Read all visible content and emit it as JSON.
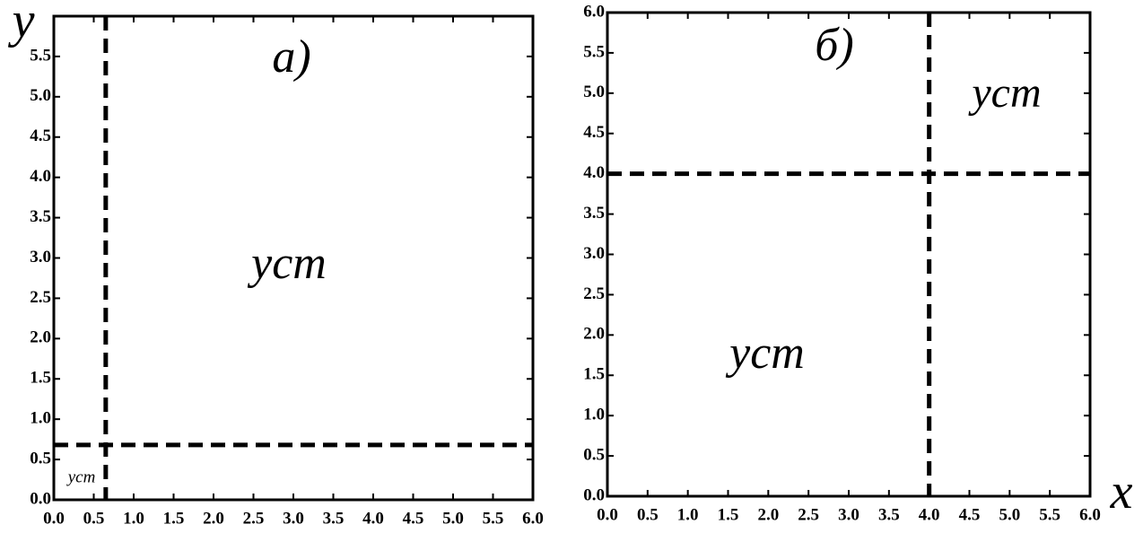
{
  "chart_data": [
    {
      "type": "threshold",
      "label": "а)",
      "y_label": "y",
      "annotations": [
        "уст",
        "уст"
      ],
      "vline": 0.65,
      "hline": 0.68,
      "xlim": [
        0,
        6
      ],
      "ylim": [
        0,
        6
      ],
      "xticks": [
        {
          "value": 0,
          "label": "0.0"
        },
        {
          "value": 0.5,
          "label": "0.5"
        },
        {
          "value": 1,
          "label": "1.0"
        },
        {
          "value": 1.5,
          "label": "1.5"
        },
        {
          "value": 2,
          "label": "2.0"
        },
        {
          "value": 2.5,
          "label": "2.5"
        },
        {
          "value": 3,
          "label": "3.0"
        },
        {
          "value": 3.5,
          "label": "3.5"
        },
        {
          "value": 4,
          "label": "4.0"
        },
        {
          "value": 4.5,
          "label": "4.5"
        },
        {
          "value": 5,
          "label": "5.0"
        },
        {
          "value": 5.5,
          "label": "5.5"
        },
        {
          "value": 6,
          "label": "6.0"
        }
      ],
      "yticks": [
        {
          "value": 0,
          "label": "0.0"
        },
        {
          "value": 0.5,
          "label": "0.5"
        },
        {
          "value": 1,
          "label": "1.0"
        },
        {
          "value": 1.5,
          "label": "1.5"
        },
        {
          "value": 2,
          "label": "2.0"
        },
        {
          "value": 2.5,
          "label": "2.5"
        },
        {
          "value": 3,
          "label": "3.0"
        },
        {
          "value": 3.5,
          "label": "3.5"
        },
        {
          "value": 4,
          "label": "4.0"
        },
        {
          "value": 4.5,
          "label": "4.5"
        },
        {
          "value": 5,
          "label": "5.0"
        },
        {
          "value": 5.5,
          "label": "5.5"
        }
      ]
    },
    {
      "type": "threshold",
      "label": "б)",
      "x_label": "x",
      "annotations": [
        "уст",
        "уст"
      ],
      "vline": 4.0,
      "hline": 4.0,
      "xlim": [
        0,
        6
      ],
      "ylim": [
        0,
        6
      ],
      "xticks": [
        {
          "value": 0,
          "label": "0.0"
        },
        {
          "value": 0.5,
          "label": "0.5"
        },
        {
          "value": 1,
          "label": "1.0"
        },
        {
          "value": 1.5,
          "label": "1.5"
        },
        {
          "value": 2,
          "label": "2.0"
        },
        {
          "value": 2.5,
          "label": "2.5"
        },
        {
          "value": 3,
          "label": "3.0"
        },
        {
          "value": 3.5,
          "label": "3.5"
        },
        {
          "value": 4,
          "label": "4.0"
        },
        {
          "value": 4.5,
          "label": "4.5"
        },
        {
          "value": 5,
          "label": "5.0"
        },
        {
          "value": 5.5,
          "label": "5.5"
        },
        {
          "value": 6,
          "label": "6.0"
        }
      ],
      "yticks": [
        {
          "value": 0,
          "label": "0.0"
        },
        {
          "value": 0.5,
          "label": "0.5"
        },
        {
          "value": 1,
          "label": "1.0"
        },
        {
          "value": 1.5,
          "label": "1.5"
        },
        {
          "value": 2,
          "label": "2.0"
        },
        {
          "value": 2.5,
          "label": "2.5"
        },
        {
          "value": 3,
          "label": "3.0"
        },
        {
          "value": 3.5,
          "label": "3.5"
        },
        {
          "value": 4,
          "label": "4.0"
        },
        {
          "value": 4.5,
          "label": "4.5"
        },
        {
          "value": 5,
          "label": "5.0"
        },
        {
          "value": 5.5,
          "label": "5.5"
        },
        {
          "value": 6,
          "label": "6.0"
        }
      ]
    }
  ]
}
